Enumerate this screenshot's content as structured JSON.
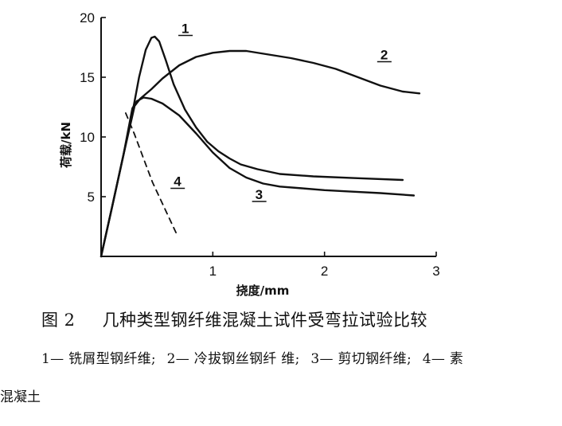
{
  "chart_data": {
    "type": "line",
    "xlabel": "挠度/mm",
    "ylabel": "荷载/kN",
    "xlim": [
      0,
      3
    ],
    "ylim": [
      0,
      20
    ],
    "x_ticks": [
      "1",
      "2",
      "3"
    ],
    "y_ticks": [
      "20",
      "15",
      "10",
      "5"
    ],
    "x_tick_values": [
      1,
      2,
      3
    ],
    "y_tick_values": [
      20,
      15,
      10,
      5
    ],
    "grid": false,
    "series": [
      {
        "name": "1",
        "label_x": 0.72,
        "label_y": 18.7,
        "points": [
          [
            0,
            0
          ],
          [
            0.1,
            4.2
          ],
          [
            0.2,
            8.5
          ],
          [
            0.28,
            12.0
          ],
          [
            0.34,
            15.0
          ],
          [
            0.4,
            17.3
          ],
          [
            0.45,
            18.3
          ],
          [
            0.48,
            18.4
          ],
          [
            0.52,
            18.0
          ],
          [
            0.58,
            16.4
          ],
          [
            0.65,
            14.4
          ],
          [
            0.75,
            12.3
          ],
          [
            0.85,
            10.8
          ],
          [
            0.95,
            9.6
          ],
          [
            1.05,
            8.8
          ],
          [
            1.15,
            8.2
          ],
          [
            1.25,
            7.7
          ],
          [
            1.4,
            7.3
          ],
          [
            1.6,
            6.9
          ],
          [
            1.9,
            6.7
          ],
          [
            2.3,
            6.55
          ],
          [
            2.7,
            6.4
          ]
        ]
      },
      {
        "name": "2",
        "label_x": 2.5,
        "label_y": 16.5,
        "points": [
          [
            0,
            0
          ],
          [
            0.1,
            4.2
          ],
          [
            0.2,
            8.5
          ],
          [
            0.3,
            12.6
          ],
          [
            0.35,
            13.2
          ],
          [
            0.45,
            14.0
          ],
          [
            0.55,
            14.9
          ],
          [
            0.7,
            16.0
          ],
          [
            0.85,
            16.7
          ],
          [
            1.0,
            17.05
          ],
          [
            1.15,
            17.2
          ],
          [
            1.3,
            17.2
          ],
          [
            1.5,
            16.9
          ],
          [
            1.7,
            16.6
          ],
          [
            1.9,
            16.2
          ],
          [
            2.1,
            15.7
          ],
          [
            2.3,
            15.0
          ],
          [
            2.5,
            14.3
          ],
          [
            2.7,
            13.8
          ],
          [
            2.85,
            13.65
          ]
        ]
      },
      {
        "name": "3",
        "label_x": 1.38,
        "label_y": 4.8,
        "points": [
          [
            0,
            0
          ],
          [
            0.1,
            4.2
          ],
          [
            0.2,
            8.5
          ],
          [
            0.28,
            12.4
          ],
          [
            0.32,
            13.0
          ],
          [
            0.38,
            13.3
          ],
          [
            0.45,
            13.2
          ],
          [
            0.55,
            12.8
          ],
          [
            0.7,
            11.8
          ],
          [
            0.85,
            10.3
          ],
          [
            1.0,
            8.7
          ],
          [
            1.15,
            7.4
          ],
          [
            1.3,
            6.6
          ],
          [
            1.45,
            6.1
          ],
          [
            1.6,
            5.85
          ],
          [
            1.8,
            5.7
          ],
          [
            2.0,
            5.55
          ],
          [
            2.2,
            5.45
          ],
          [
            2.5,
            5.3
          ],
          [
            2.8,
            5.1
          ]
        ]
      },
      {
        "name": "4",
        "label_x": 0.65,
        "label_y": 5.9,
        "dashed": true,
        "points": [
          [
            0.22,
            12.0
          ],
          [
            0.3,
            10.2
          ],
          [
            0.38,
            8.2
          ],
          [
            0.46,
            6.2
          ],
          [
            0.54,
            4.6
          ],
          [
            0.62,
            3.0
          ],
          [
            0.68,
            1.8
          ]
        ]
      }
    ]
  },
  "caption": {
    "figure_number": "图 2",
    "title": "几种类型钢纤维混凝土试件受弯拉试验比较"
  },
  "legend": {
    "item1": "1— 铣屑型钢纤维;",
    "item2": "2— 冷拔钢丝钢纤 维;",
    "item3": "3— 剪切钢纤维;",
    "item4_start": "4— 素",
    "item4_end": "混凝土"
  }
}
